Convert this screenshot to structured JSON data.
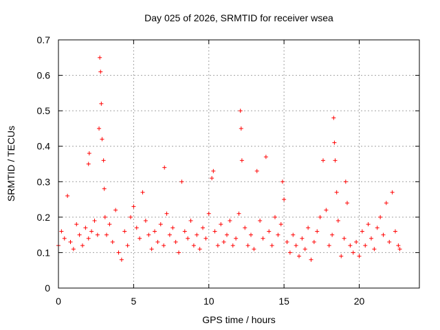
{
  "chart_data": {
    "type": "scatter",
    "title": "Day 025 of 2026, SRMTID for receiver wsea",
    "xlabel": "GPS time / hours",
    "ylabel": "SRMTID / TECUs",
    "xlim": [
      0,
      24
    ],
    "ylim": [
      0,
      0.7
    ],
    "xticks": [
      "0",
      "5",
      "10",
      "15",
      "20"
    ],
    "yticks": [
      "0",
      "0.1",
      "0.2",
      "0.3",
      "0.4",
      "0.5",
      "0.6",
      "0.7"
    ],
    "grid": true,
    "marker": "+",
    "color": "#ff0000",
    "series": [
      {
        "name": "SRMTID",
        "x": [
          0.0,
          0.2,
          0.4,
          0.6,
          0.8,
          1.0,
          1.2,
          1.4,
          1.6,
          1.8,
          2.0,
          2.0,
          2.05,
          2.2,
          2.4,
          2.6,
          2.7,
          2.75,
          2.8,
          2.85,
          2.9,
          3.0,
          3.05,
          3.1,
          3.2,
          3.4,
          3.6,
          3.8,
          4.0,
          4.2,
          4.4,
          4.6,
          4.8,
          5.0,
          5.2,
          5.4,
          5.6,
          5.8,
          6.0,
          6.2,
          6.4,
          6.6,
          6.8,
          7.0,
          7.05,
          7.2,
          7.4,
          7.6,
          7.8,
          8.0,
          8.2,
          8.4,
          8.6,
          8.8,
          9.0,
          9.2,
          9.4,
          9.6,
          9.8,
          10.0,
          10.2,
          10.3,
          10.4,
          10.6,
          10.8,
          11.0,
          11.2,
          11.4,
          11.6,
          11.8,
          12.0,
          12.1,
          12.15,
          12.2,
          12.4,
          12.6,
          12.8,
          13.0,
          13.2,
          13.4,
          13.6,
          13.8,
          14.0,
          14.2,
          14.4,
          14.6,
          14.8,
          14.9,
          15.0,
          15.2,
          15.4,
          15.6,
          15.8,
          16.0,
          16.2,
          16.4,
          16.6,
          16.8,
          17.0,
          17.2,
          17.4,
          17.6,
          17.8,
          18.0,
          18.2,
          18.3,
          18.35,
          18.4,
          18.5,
          18.6,
          18.8,
          19.0,
          19.1,
          19.2,
          19.4,
          19.6,
          19.8,
          20.0,
          20.2,
          20.4,
          20.6,
          20.8,
          21.0,
          21.2,
          21.4,
          21.6,
          21.8,
          22.0,
          22.2,
          22.4,
          22.6,
          22.7
        ],
        "y": [
          0.12,
          0.16,
          0.14,
          0.26,
          0.13,
          0.11,
          0.18,
          0.15,
          0.12,
          0.17,
          0.14,
          0.35,
          0.38,
          0.16,
          0.19,
          0.15,
          0.45,
          0.65,
          0.61,
          0.52,
          0.42,
          0.36,
          0.28,
          0.2,
          0.15,
          0.18,
          0.13,
          0.22,
          0.1,
          0.08,
          0.16,
          0.12,
          0.2,
          0.23,
          0.17,
          0.14,
          0.27,
          0.19,
          0.15,
          0.11,
          0.16,
          0.13,
          0.18,
          0.12,
          0.34,
          0.21,
          0.15,
          0.17,
          0.13,
          0.1,
          0.3,
          0.16,
          0.14,
          0.19,
          0.12,
          0.15,
          0.11,
          0.17,
          0.14,
          0.21,
          0.31,
          0.33,
          0.16,
          0.12,
          0.18,
          0.13,
          0.15,
          0.19,
          0.12,
          0.14,
          0.21,
          0.5,
          0.45,
          0.36,
          0.17,
          0.12,
          0.15,
          0.11,
          0.33,
          0.19,
          0.14,
          0.37,
          0.16,
          0.12,
          0.2,
          0.15,
          0.18,
          0.3,
          0.25,
          0.13,
          0.1,
          0.15,
          0.12,
          0.09,
          0.14,
          0.11,
          0.17,
          0.08,
          0.13,
          0.16,
          0.2,
          0.36,
          0.22,
          0.12,
          0.15,
          0.48,
          0.41,
          0.36,
          0.27,
          0.19,
          0.09,
          0.14,
          0.3,
          0.24,
          0.12,
          0.1,
          0.13,
          0.09,
          0.16,
          0.12,
          0.18,
          0.14,
          0.11,
          0.17,
          0.2,
          0.15,
          0.24,
          0.13,
          0.27,
          0.16,
          0.12,
          0.11
        ]
      }
    ]
  }
}
